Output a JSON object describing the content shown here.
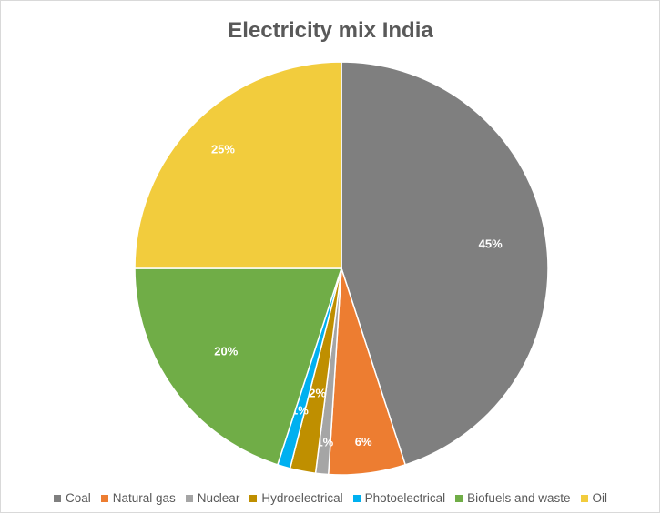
{
  "chart_data": {
    "type": "pie",
    "title": "Electricity mix India",
    "legend_position": "bottom",
    "slices": [
      {
        "name": "Coal",
        "value": 45,
        "label": "45%",
        "color": "#7f7f7f"
      },
      {
        "name": "Natural gas",
        "value": 6,
        "label": "6%",
        "color": "#ed7d31"
      },
      {
        "name": "Nuclear",
        "value": 1,
        "label": "1%",
        "color": "#a5a5a5"
      },
      {
        "name": "Hydroelectrical",
        "value": 2,
        "label": "2%",
        "color": "#bf8f00"
      },
      {
        "name": "Photoelectrical",
        "value": 1,
        "label": "1%",
        "color": "#00b0f0"
      },
      {
        "name": "Biofuels and waste",
        "value": 20,
        "label": "20%",
        "color": "#70ad47"
      },
      {
        "name": "Oil",
        "value": 25,
        "label": "25%",
        "color": "#f2cc3d"
      }
    ]
  }
}
